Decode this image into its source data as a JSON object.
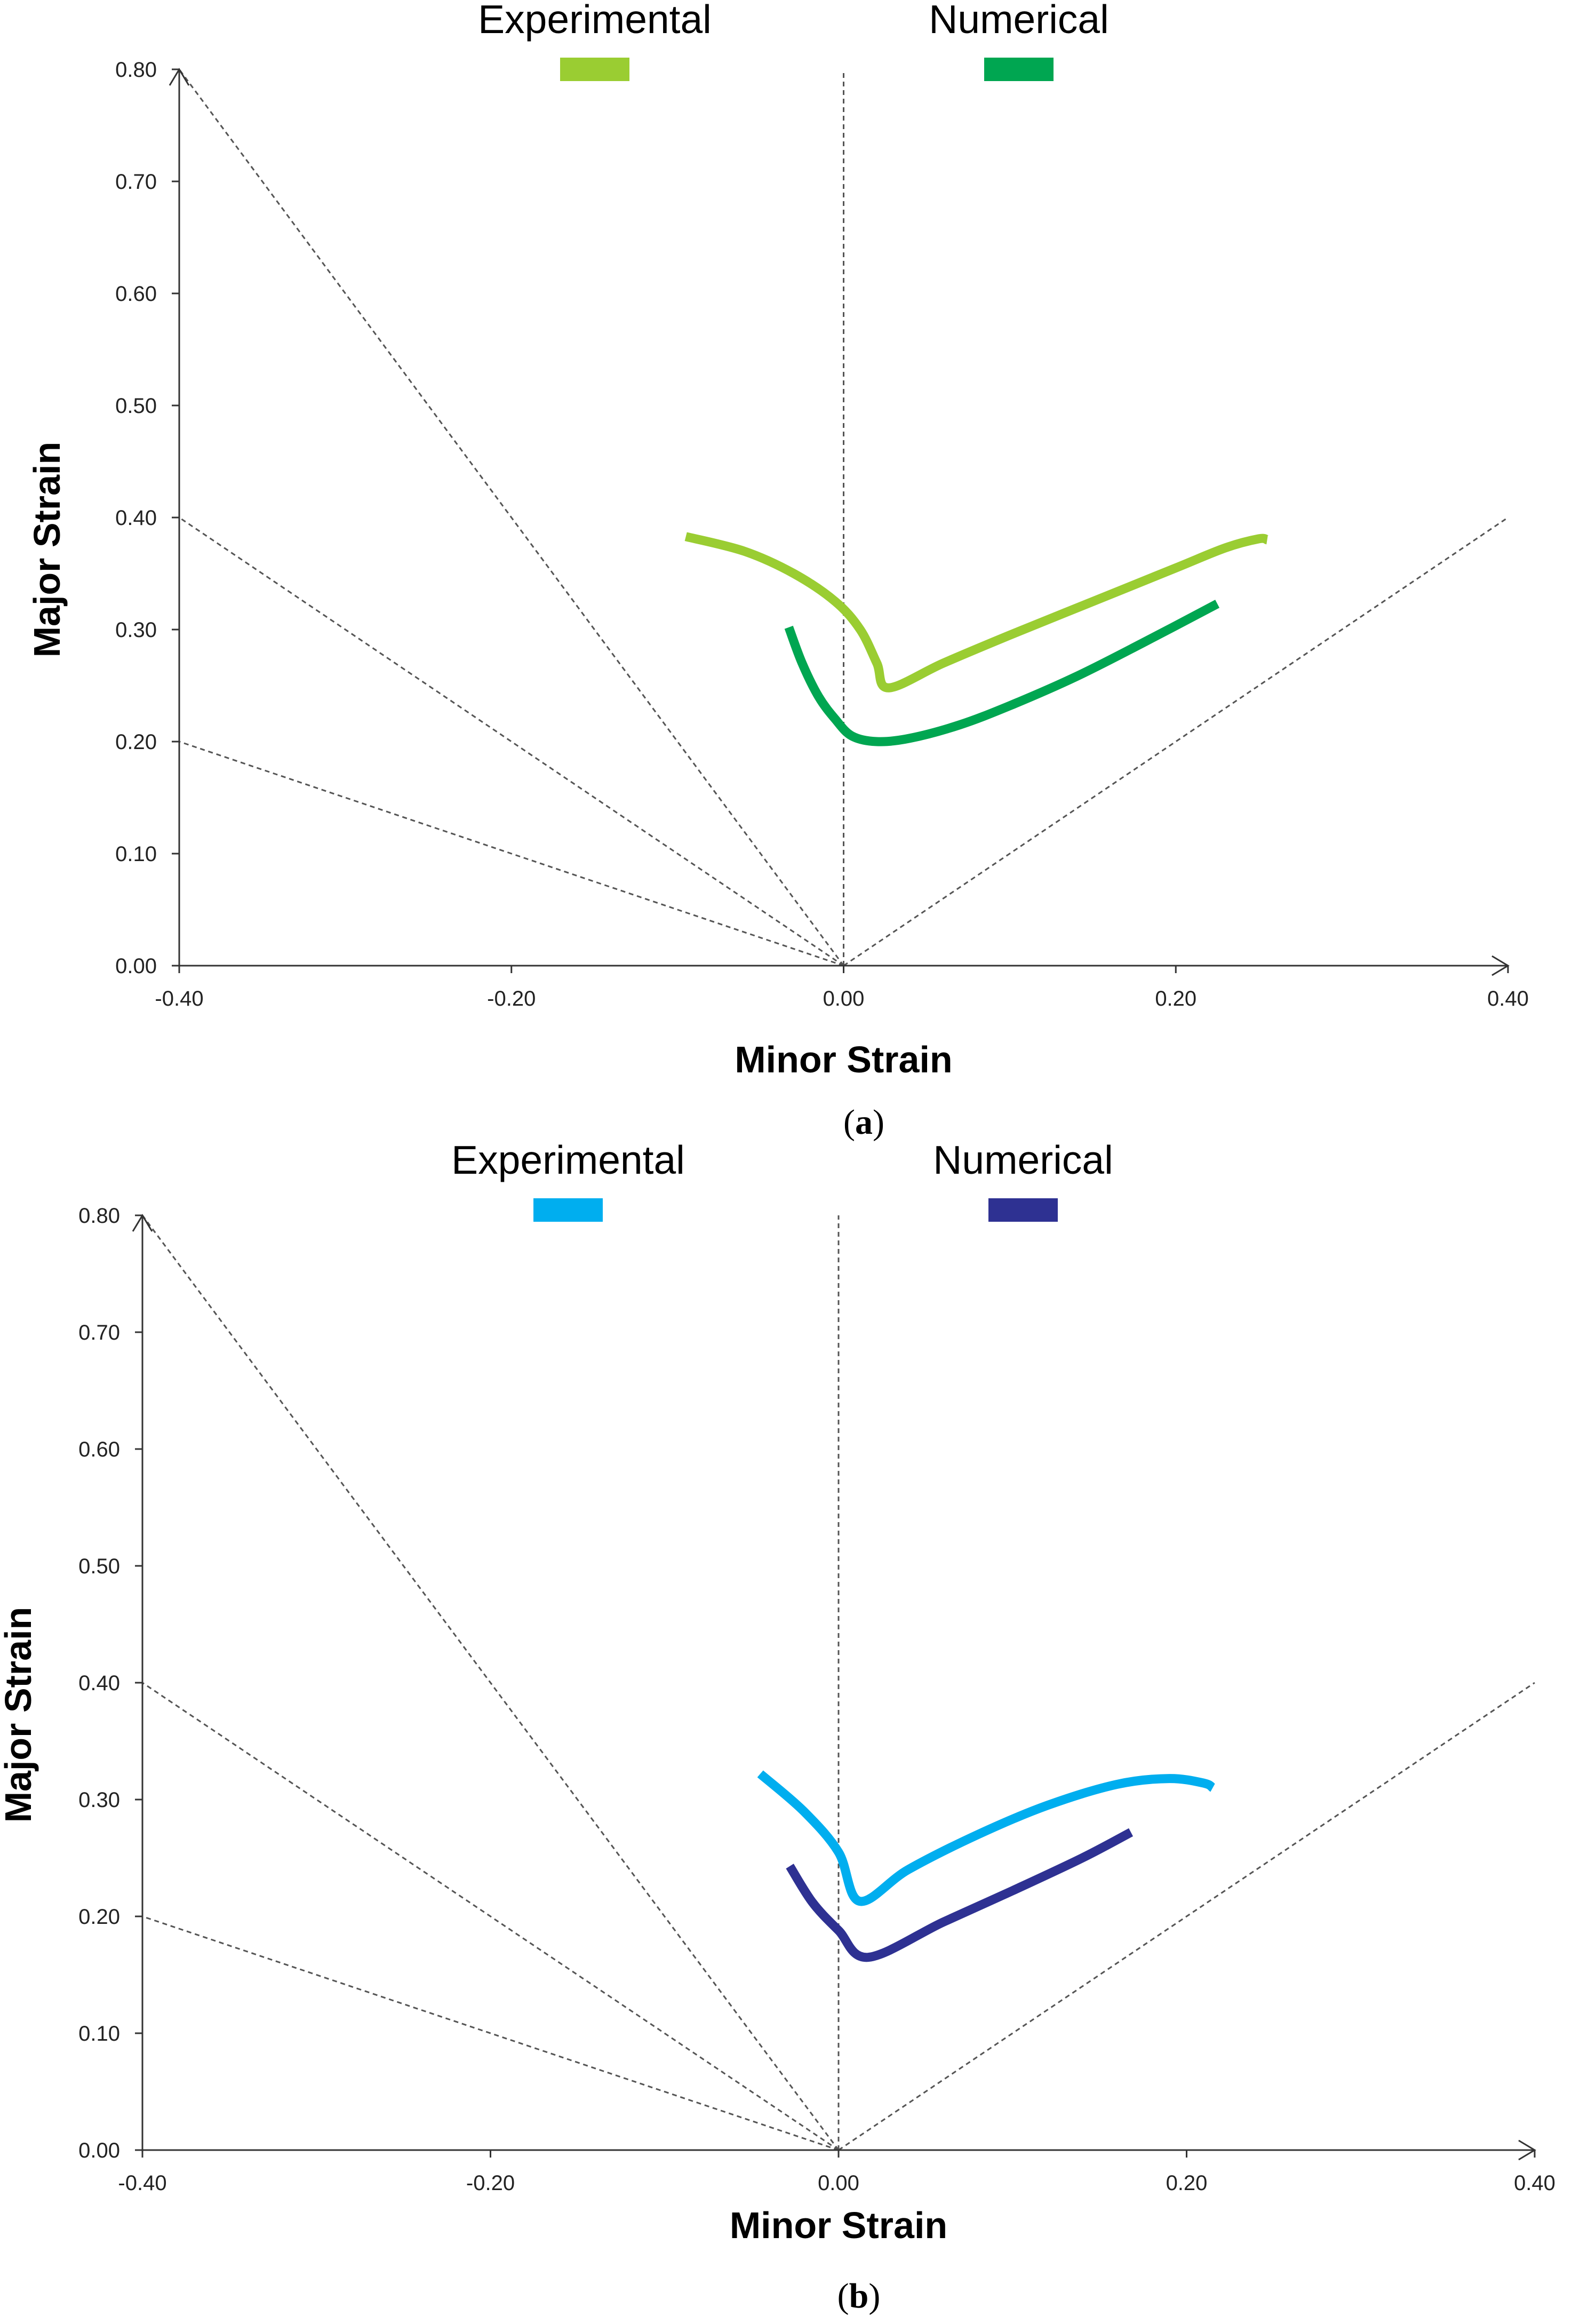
{
  "chart_data": [
    {
      "type": "line",
      "caption_open": "(",
      "caption_label": "a",
      "caption_close": ")",
      "xlabel": "Minor Strain",
      "ylabel": "Major Strain",
      "xlim": [
        -0.4,
        0.4
      ],
      "ylim": [
        0,
        0.8
      ],
      "x_ticks": [
        "-0.40",
        "-0.20",
        "0.00",
        "0.20",
        "0.40"
      ],
      "y_ticks": [
        "0.00",
        "0.10",
        "0.20",
        "0.30",
        "0.40",
        "0.50",
        "0.60",
        "0.70",
        "0.80"
      ],
      "reference_lines": [
        {
          "x": [
            0,
            -0.4
          ],
          "y": [
            0,
            0.8
          ]
        },
        {
          "x": [
            0,
            -0.4
          ],
          "y": [
            0,
            0.4
          ]
        },
        {
          "x": [
            0,
            -0.4
          ],
          "y": [
            0,
            0.2
          ]
        },
        {
          "x": [
            0,
            0
          ],
          "y": [
            0,
            0.8
          ]
        },
        {
          "x": [
            0,
            0.4
          ],
          "y": [
            0,
            0.4
          ]
        }
      ],
      "series": [
        {
          "name": "Experimental",
          "color": "#9ACD32",
          "x": [
            -0.095,
            -0.06,
            -0.03,
            -0.005,
            0.01,
            0.02,
            0.027,
            0.06,
            0.1,
            0.15,
            0.2,
            0.23,
            0.25,
            0.255
          ],
          "y": [
            0.383,
            0.37,
            0.35,
            0.325,
            0.3,
            0.27,
            0.248,
            0.27,
            0.295,
            0.325,
            0.355,
            0.373,
            0.381,
            0.38
          ]
        },
        {
          "name": "Numerical",
          "color": "#00A651",
          "x": [
            -0.033,
            -0.025,
            -0.015,
            -0.005,
            0.005,
            0.02,
            0.04,
            0.07,
            0.1,
            0.14,
            0.18,
            0.225
          ],
          "y": [
            0.302,
            0.27,
            0.24,
            0.22,
            0.205,
            0.2,
            0.203,
            0.215,
            0.232,
            0.258,
            0.288,
            0.323
          ]
        }
      ]
    },
    {
      "type": "line",
      "caption_open": "(",
      "caption_label": "b",
      "caption_close": ")",
      "xlabel": "Minor Strain",
      "ylabel": "Major Strain",
      "xlim": [
        -0.4,
        0.4
      ],
      "ylim": [
        0,
        0.8
      ],
      "x_ticks": [
        "-0.40",
        "-0.20",
        "0.00",
        "0.20",
        "0.40"
      ],
      "y_ticks": [
        "0.00",
        "0.10",
        "0.20",
        "0.30",
        "0.40",
        "0.50",
        "0.60",
        "0.70",
        "0.80"
      ],
      "reference_lines": [
        {
          "x": [
            0,
            -0.4
          ],
          "y": [
            0,
            0.8
          ]
        },
        {
          "x": [
            0,
            -0.4
          ],
          "y": [
            0,
            0.4
          ]
        },
        {
          "x": [
            0,
            -0.4
          ],
          "y": [
            0,
            0.2
          ]
        },
        {
          "x": [
            0,
            0
          ],
          "y": [
            0,
            0.8
          ]
        },
        {
          "x": [
            0,
            0.4
          ],
          "y": [
            0,
            0.4
          ]
        }
      ],
      "series": [
        {
          "name": "Experimental",
          "color": "#00AEEF",
          "x": [
            -0.045,
            -0.02,
            0.0,
            0.012,
            0.04,
            0.08,
            0.12,
            0.16,
            0.19,
            0.21,
            0.215
          ],
          "y": [
            0.322,
            0.29,
            0.255,
            0.213,
            0.24,
            0.27,
            0.295,
            0.313,
            0.318,
            0.314,
            0.31
          ]
        },
        {
          "name": "Numerical",
          "color": "#2E3192",
          "x": [
            -0.028,
            -0.015,
            0.0,
            0.017,
            0.06,
            0.1,
            0.14,
            0.168
          ],
          "y": [
            0.243,
            0.212,
            0.188,
            0.165,
            0.195,
            0.222,
            0.25,
            0.272
          ]
        }
      ]
    }
  ]
}
